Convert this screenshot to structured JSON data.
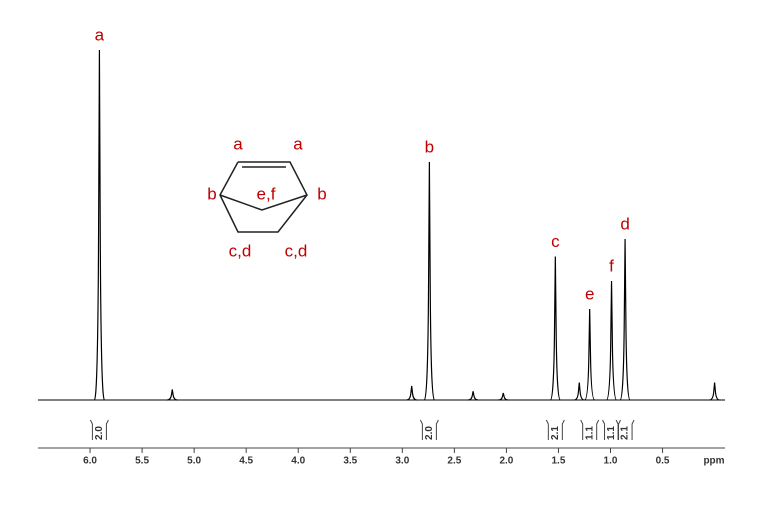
{
  "chart_data": {
    "type": "nmr",
    "x_label": "ppm",
    "color": "#000000",
    "label_color": "#c00000",
    "xlim": [
      6.5,
      -0.1
    ],
    "ylim": [
      0,
      100
    ],
    "xticks": [
      {
        "value": 6,
        "label": "6.0"
      },
      {
        "value": 5.5,
        "label": "5.5"
      },
      {
        "value": 5,
        "label": "5.0"
      },
      {
        "value": 4.5,
        "label": "4.5"
      },
      {
        "value": 4,
        "label": "4.0"
      },
      {
        "value": 3.5,
        "label": "3.5"
      },
      {
        "value": 3,
        "label": "3.0"
      },
      {
        "value": 2.5,
        "label": "2.5"
      },
      {
        "value": 2,
        "label": "2.0"
      },
      {
        "value": 1.5,
        "label": "1.5"
      },
      {
        "value": 1,
        "label": "1.0"
      },
      {
        "value": 0.5,
        "label": "0.5"
      }
    ],
    "peaks": {
      "x": [
        5.91,
        5.21,
        2.91,
        2.74,
        2.32,
        2.03,
        1.53,
        1.3,
        1.2,
        0.99,
        0.86,
        0.0
      ],
      "values": [
        100,
        3,
        4,
        68,
        2.5,
        2,
        41,
        5,
        26,
        34,
        46,
        5
      ],
      "labels": [
        "a",
        null,
        null,
        "b",
        null,
        null,
        "c",
        null,
        "e",
        "f",
        "d",
        null
      ]
    },
    "integrals": {
      "x": [
        5.91,
        2.74,
        1.53,
        1.2,
        0.99,
        0.86
      ],
      "values": [
        2,
        2,
        2.1,
        1.1,
        1.1,
        2.1
      ],
      "value_labels": [
        "2.0",
        "2.0",
        "2.1",
        "1.1",
        "1.1",
        "2.1"
      ]
    },
    "structure_labels": [
      "a",
      "a",
      "b",
      "b",
      "e,f",
      "c,d",
      "c,d"
    ]
  }
}
